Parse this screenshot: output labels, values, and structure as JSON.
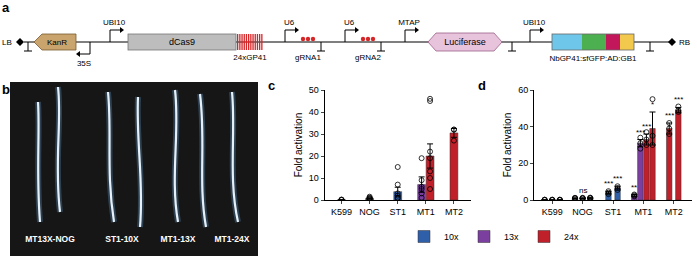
{
  "panel_labels": {
    "a": "a",
    "b": "b",
    "c": "c",
    "d": "d"
  },
  "construct": {
    "elements": [
      "LB",
      "KanR",
      "35S",
      "UBI10",
      "dCas9",
      "24xGP41",
      "U6",
      "gRNA1",
      "U6",
      "gRNA2",
      "MTAP",
      "Luciferase",
      "UBI10",
      "NbGP41:sfGFP:AD:GB1",
      "RB"
    ]
  },
  "photo": {
    "labels": [
      "MT13X-NOG",
      "ST1-10X",
      "MT1-13X",
      "MT1-24X"
    ]
  },
  "chart_data": [
    {
      "type": "bar",
      "y_label": "Fold activation",
      "xlim": [
        -0.6,
        4.6
      ],
      "xticks": [
        {
          "value": 0,
          "label": "K599"
        },
        {
          "value": 1,
          "label": "NOG"
        },
        {
          "value": 2,
          "label": "ST1"
        },
        {
          "value": 3,
          "label": "MT1"
        },
        {
          "value": 4,
          "label": "MT2"
        }
      ],
      "ylim": [
        0,
        50
      ],
      "yticks": [
        0,
        10,
        20,
        30,
        40,
        50
      ],
      "grid": false,
      "series": [
        {
          "color": "#555555",
          "x": [
            0,
            1
          ],
          "values": [
            0.1,
            0.8
          ],
          "errors": [
            0.05,
            0.2
          ],
          "points": [
            [
              0,
              0.1,
              0.2
            ],
            [
              0.3,
              0.5,
              0.8,
              1.0,
              1.5
            ]
          ]
        },
        {
          "name": "10x",
          "color": "#2f5fa8",
          "x": [
            2
          ],
          "values": [
            3.8
          ],
          "errors": [
            2
          ],
          "points": [
            [
              0.8,
              1,
              2,
              3,
              7,
              15
            ]
          ]
        },
        {
          "name": "13x",
          "color": "#7b3fa0",
          "x": [
            2.85
          ],
          "values": [
            7
          ],
          "errors": [
            3.5
          ],
          "points": [
            [
              1,
              3,
              5,
              6,
              9,
              19
            ]
          ]
        },
        {
          "name": "24x",
          "color": "#c0202a",
          "x": [
            3.15,
            4
          ],
          "values": [
            20,
            30.5
          ],
          "errors": [
            5.5,
            2
          ],
          "points": [
            [
              5,
              10,
              13,
              19,
              22,
              45,
              46
            ],
            [
              27,
              32,
              32
            ]
          ]
        }
      ]
    },
    {
      "type": "bar",
      "y_label": "Fold activation",
      "legend": "bottom",
      "xlim": [
        0.4,
        5.6
      ],
      "xticks": [
        {
          "value": 1,
          "label": "K599"
        },
        {
          "value": 2,
          "label": "NOG"
        },
        {
          "value": 3,
          "label": "ST1"
        },
        {
          "value": 4,
          "label": "MT1"
        },
        {
          "value": 5,
          "label": "MT2"
        }
      ],
      "ylim": [
        0,
        60
      ],
      "yticks": [
        0,
        20,
        40,
        60
      ],
      "grid": false,
      "series": [
        {
          "color": "#555555",
          "x": [
            0.75,
            1,
            1.25,
            1.75,
            2,
            2.25
          ],
          "values": [
            0.1,
            0.1,
            0.1,
            1,
            1,
            1.1
          ],
          "errors": [
            0.05,
            0.05,
            0.05,
            0.2,
            0.2,
            0.2
          ],
          "points": [
            [
              0,
              0.1,
              0.2
            ],
            [
              0,
              0.1,
              0.2
            ],
            [
              0,
              0.1,
              0.2
            ],
            [
              0.8,
              1,
              1.2
            ],
            [
              0.8,
              1,
              1.2
            ],
            [
              0.9,
              1.1,
              1.3
            ]
          ],
          "sig_labels": [
            null,
            null,
            null,
            null,
            "ns",
            null
          ]
        },
        {
          "name": "10x",
          "color": "#2f5fa8",
          "x": [
            2.85,
            3.15
          ],
          "values": [
            4,
            6.5
          ],
          "errors": [
            0.7,
            1
          ],
          "points": [
            [
              3.2,
              4,
              4.8
            ],
            [
              5.5,
              6.5,
              7.5
            ]
          ],
          "sig_labels": [
            "***",
            "***"
          ]
        },
        {
          "name": "13x",
          "color": "#7b3fa0",
          "x": [
            3.7,
            3.9
          ],
          "values": [
            2.5,
            31
          ],
          "errors": [
            0.5,
            2
          ],
          "points": [
            [
              2,
              2.5,
              3
            ],
            [
              28,
              31,
              34
            ]
          ],
          "sig_labels": [
            "**",
            "***"
          ]
        },
        {
          "name": "24x",
          "color": "#c0202a",
          "x": [
            4.1,
            4.3,
            4.85,
            5.15
          ],
          "values": [
            33,
            39,
            39,
            49
          ],
          "errors": [
            3,
            9,
            3,
            1.5
          ],
          "points": [
            [
              30,
              33,
              37
            ],
            [
              30,
              35,
              55
            ],
            [
              36,
              39,
              42
            ],
            [
              48,
              49,
              51
            ]
          ],
          "sig_labels": [
            "***",
            "*",
            "***",
            "***"
          ]
        }
      ]
    }
  ]
}
